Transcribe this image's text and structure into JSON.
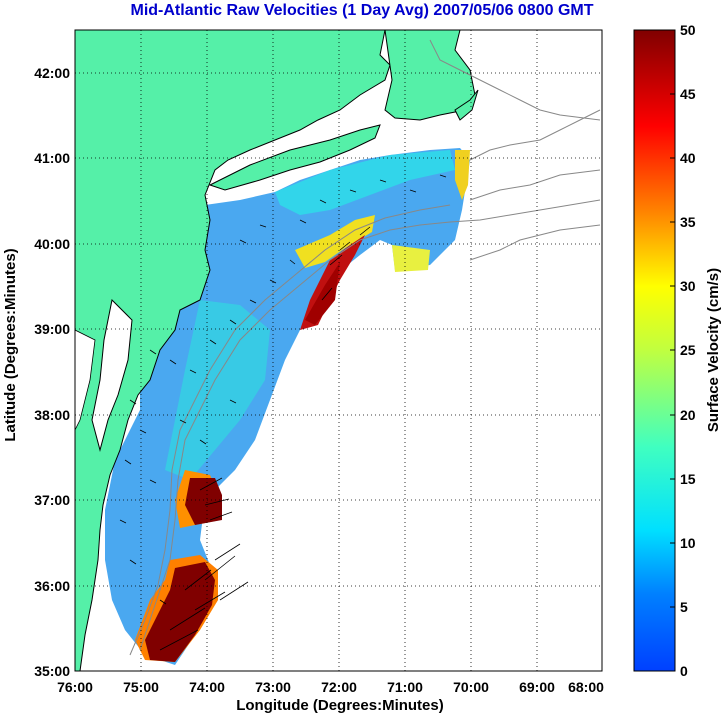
{
  "title": "Mid-Atlantic Raw Velocities (1 Day Avg) 2007/05/06 0800 GMT",
  "map": {
    "xlabel": "Longitude (Degrees:Minutes)",
    "ylabel": "Latitude (Degrees:Minutes)",
    "lon_range": [
      -76,
      -68
    ],
    "lat_range": [
      35,
      42.5
    ],
    "lon_ticks": [
      "76:00",
      "75:00",
      "74:00",
      "73:00",
      "72:00",
      "71:00",
      "70:00",
      "69:00",
      "68:00"
    ],
    "lat_ticks": [
      "35:00",
      "36:00",
      "37:00",
      "38:00",
      "39:00",
      "40:00",
      "41:00",
      "42:00"
    ],
    "land_color": "#55f0a8",
    "ocean_color": "#ffffff",
    "grid": "dotted"
  },
  "colorbar": {
    "label": "Surface Velocity (cm/s)",
    "min": 0,
    "max": 50,
    "ticks": [
      "0",
      "5",
      "10",
      "15",
      "20",
      "25",
      "30",
      "35",
      "40",
      "45",
      "50"
    ],
    "colormap": "jet"
  }
}
